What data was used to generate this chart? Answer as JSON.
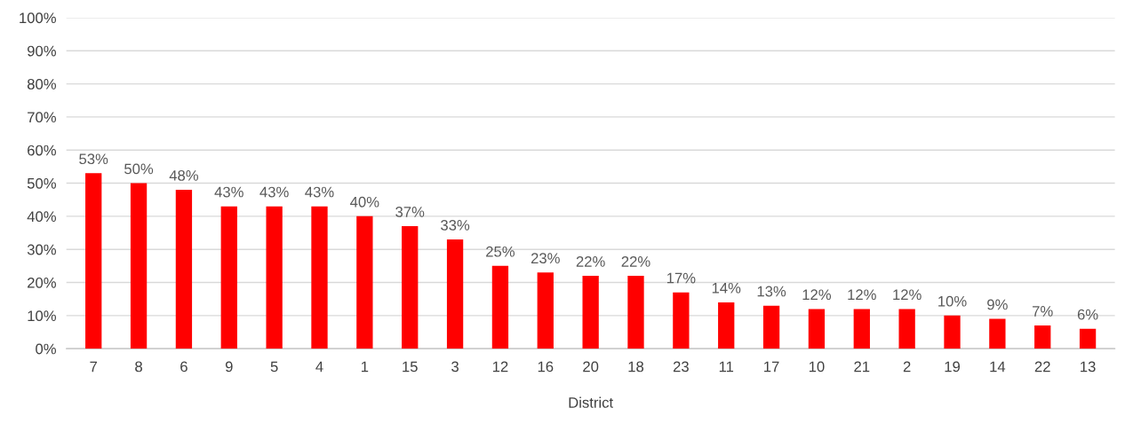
{
  "chart_data": {
    "type": "bar",
    "xlabel": "District",
    "categories": [
      "7",
      "8",
      "6",
      "9",
      "5",
      "4",
      "1",
      "15",
      "3",
      "12",
      "16",
      "20",
      "18",
      "23",
      "11",
      "17",
      "10",
      "21",
      "2",
      "19",
      "14",
      "22",
      "13"
    ],
    "values": [
      53,
      50,
      48,
      43,
      43,
      43,
      40,
      37,
      33,
      25,
      23,
      22,
      22,
      17,
      14,
      13,
      12,
      12,
      12,
      10,
      9,
      7,
      6
    ],
    "value_labels": [
      "53%",
      "50%",
      "48%",
      "43%",
      "43%",
      "43%",
      "40%",
      "37%",
      "33%",
      "25%",
      "23%",
      "22%",
      "22%",
      "17%",
      "14%",
      "13%",
      "12%",
      "12%",
      "12%",
      "10%",
      "9%",
      "7%",
      "6%"
    ],
    "color": "#ff0000",
    "ylim": [
      0,
      100
    ],
    "yticks": [
      {
        "value": 0,
        "label": "0%"
      },
      {
        "value": 10,
        "label": "10%"
      },
      {
        "value": 20,
        "label": "20%"
      },
      {
        "value": 30,
        "label": "30%"
      },
      {
        "value": 40,
        "label": "40%"
      },
      {
        "value": 50,
        "label": "50%"
      },
      {
        "value": 60,
        "label": "60%"
      },
      {
        "value": 70,
        "label": "70%"
      },
      {
        "value": 80,
        "label": "80%"
      },
      {
        "value": 90,
        "label": "90%"
      },
      {
        "value": 100,
        "label": "100%"
      }
    ],
    "grid": "y",
    "legend": false
  }
}
